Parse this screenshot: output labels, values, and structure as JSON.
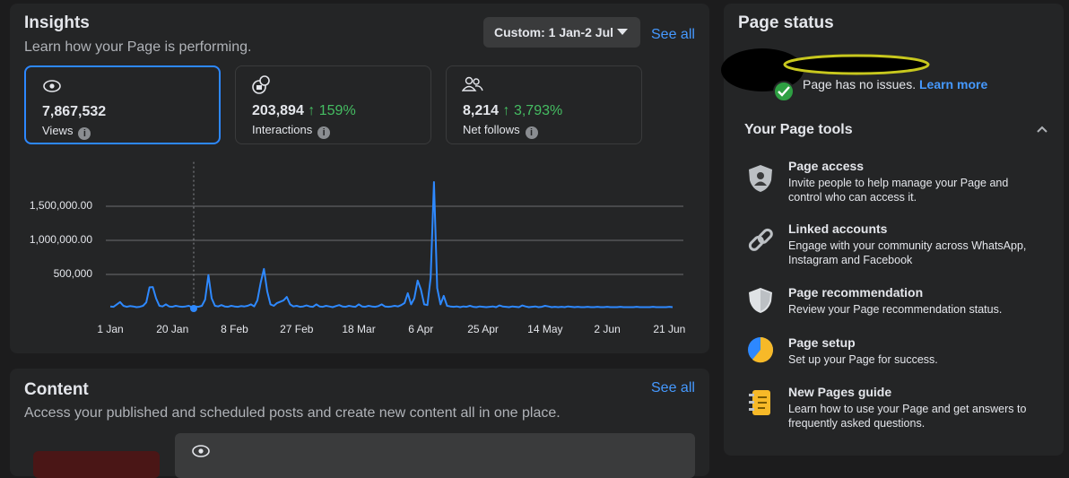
{
  "insights": {
    "title": "Insights",
    "subtitle": "Learn how your Page is performing.",
    "date_filter": "Custom: 1 Jan-2 Jul",
    "see_all": "See all",
    "metrics": [
      {
        "value": "7,867,532",
        "label": "Views"
      },
      {
        "value": "203,894",
        "change": "159%",
        "label": "Interactions"
      },
      {
        "value": "8,214",
        "change": "3,793%",
        "label": "Net follows"
      }
    ]
  },
  "chart_data": {
    "type": "line",
    "color": "#2e89ff",
    "categories": [
      "1 Jan",
      null,
      null,
      null,
      null,
      null,
      null,
      null,
      null,
      null,
      null,
      null,
      null,
      null,
      null,
      null,
      null,
      null,
      null,
      "20 Jan",
      null,
      null,
      null,
      null,
      null,
      null,
      null,
      null,
      null,
      null,
      null,
      null,
      null,
      null,
      null,
      null,
      null,
      null,
      "8 Feb",
      null,
      null,
      null,
      null,
      null,
      null,
      null,
      null,
      null,
      null,
      null,
      null,
      null,
      null,
      null,
      null,
      null,
      null,
      "27 Feb",
      null,
      null,
      null,
      null,
      null,
      null,
      null,
      null,
      null,
      null,
      null,
      null,
      null,
      null,
      null,
      null,
      null,
      null,
      "18 Mar",
      null,
      null,
      null,
      null,
      null,
      null,
      null,
      null,
      null,
      null,
      null,
      null,
      null,
      null,
      null,
      null,
      null,
      null,
      "6 Apr",
      null,
      null,
      null,
      null,
      null,
      null,
      null,
      null,
      null,
      null,
      null,
      null,
      null,
      null,
      null,
      null,
      null,
      null,
      "25 Apr",
      null,
      null,
      null,
      null,
      null,
      null,
      null,
      null,
      null,
      null,
      null,
      null,
      null,
      null,
      null,
      null,
      null,
      null,
      "14 May",
      null,
      null,
      null,
      null,
      null,
      null,
      null,
      null,
      null,
      null,
      null,
      null,
      null,
      null,
      null,
      null,
      null,
      null,
      "2 Jun",
      null,
      null,
      null,
      null,
      null,
      null,
      null,
      null,
      null,
      null,
      null,
      null,
      null,
      null,
      null,
      null,
      null,
      null,
      "21 Jun",
      null
    ],
    "values": [
      30000,
      25000,
      60000,
      95000,
      40000,
      25000,
      35000,
      30000,
      20000,
      25000,
      40000,
      90000,
      310000,
      315000,
      150000,
      40000,
      30000,
      60000,
      30000,
      25000,
      40000,
      30000,
      25000,
      30000,
      40000,
      20000,
      30000,
      25000,
      40000,
      130000,
      490000,
      150000,
      40000,
      30000,
      50000,
      30000,
      25000,
      40000,
      30000,
      25000,
      35000,
      30000,
      40000,
      60000,
      30000,
      120000,
      380000,
      580000,
      250000,
      60000,
      40000,
      80000,
      100000,
      120000,
      170000,
      60000,
      30000,
      40000,
      25000,
      30000,
      45000,
      30000,
      25000,
      60000,
      30000,
      25000,
      40000,
      30000,
      20000,
      35000,
      50000,
      30000,
      25000,
      40000,
      30000,
      25000,
      60000,
      30000,
      25000,
      40000,
      30000,
      25000,
      35000,
      60000,
      30000,
      25000,
      30000,
      40000,
      30000,
      50000,
      80000,
      225000,
      60000,
      150000,
      410000,
      280000,
      60000,
      50000,
      450000,
      1855000,
      300000,
      60000,
      185000,
      40000,
      30000,
      25000,
      30000,
      20000,
      30000,
      25000,
      40000,
      25000,
      20000,
      30000,
      25000,
      20000,
      25000,
      30000,
      20000,
      45000,
      30000,
      25000,
      20000,
      30000,
      25000,
      20000,
      45000,
      30000,
      20000,
      25000,
      30000,
      20000,
      25000,
      40000,
      30000,
      20000,
      25000,
      20000,
      25000,
      20000,
      30000,
      25000,
      20000,
      25000,
      20000,
      20000,
      25000,
      20000,
      20000,
      25000,
      20000,
      20000,
      25000,
      20000,
      20000,
      20000,
      25000,
      20000,
      20000,
      20000,
      20000,
      25000,
      20000,
      20000,
      20000,
      20000,
      25000,
      20000,
      20000,
      20000,
      20000,
      25000,
      20000
    ],
    "ylim": [
      0,
      2150000
    ],
    "yticks": [
      {
        "value": 500000,
        "label": "500,000"
      },
      {
        "value": 1000000,
        "label": "1,000,000.00"
      },
      {
        "value": 1500000,
        "label": "1,500,000.00"
      }
    ],
    "grid": true
  },
  "content": {
    "title": "Content",
    "see_all": "See all",
    "subtitle": "Access your published and scheduled posts and create new content all in one place."
  },
  "page_status": {
    "title": "Page status",
    "status": "Page has no issues.",
    "link": "Learn more",
    "tools_title": "Your Page tools",
    "tools": [
      {
        "title": "Page access",
        "description": "Invite people to help manage your Page and control who can access it."
      },
      {
        "title": "Linked accounts",
        "description": "Engage with your community across WhatsApp, Instagram and Facebook"
      },
      {
        "title": "Page recommendation",
        "description": "Review your Page recommendation status."
      },
      {
        "title": "Page setup",
        "description": "Set up your Page for success."
      },
      {
        "title": "New Pages guide",
        "description": "Learn how to use your Page and get answers to frequently asked questions."
      }
    ]
  }
}
